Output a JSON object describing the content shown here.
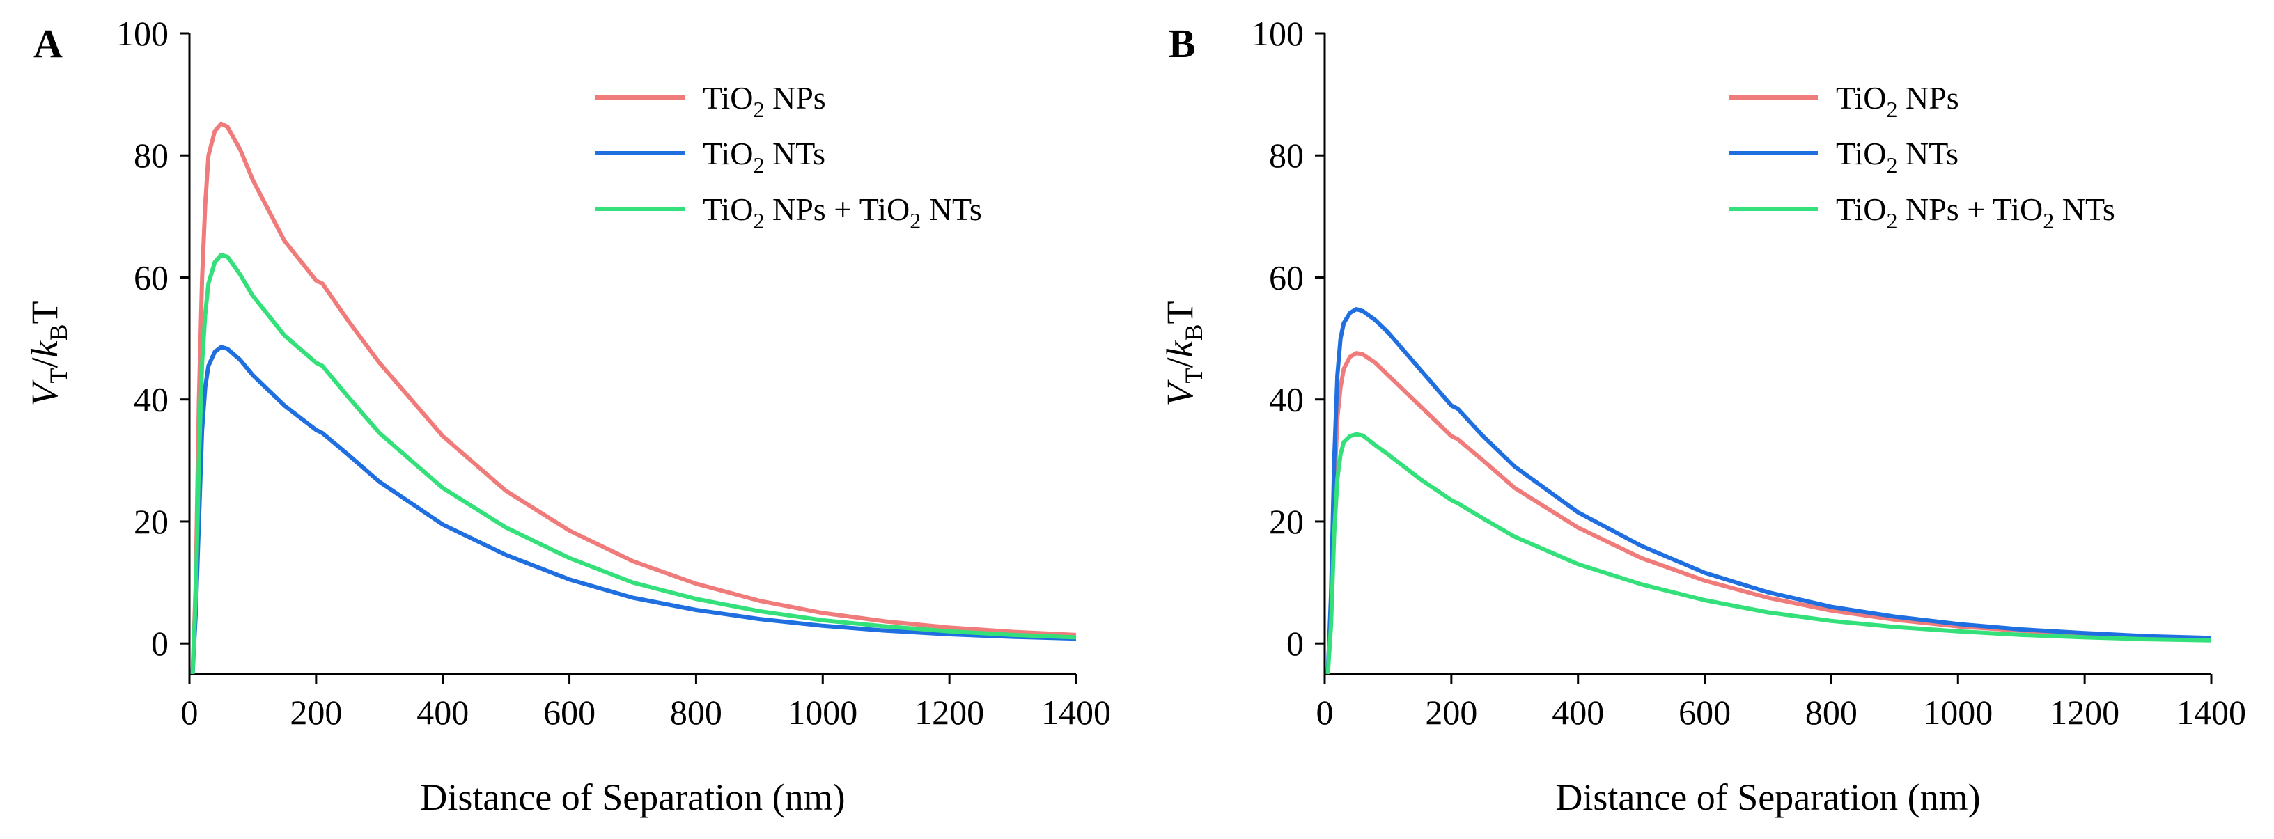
{
  "figure": {
    "title": "",
    "legend_placement": "top-right"
  },
  "chart_data": [
    {
      "panel": "A",
      "type": "line",
      "title": "",
      "xlabel": "Distance of Separation (nm)",
      "ylabel": "V_T/k_B T",
      "ylabel_parts": {
        "main": "V",
        "sub1": "T",
        "slash": "/",
        "k": "k",
        "sub2": "B",
        "tail": "T"
      },
      "xlim": [
        0,
        1400
      ],
      "ylim": [
        -5,
        100
      ],
      "xticks": [
        0,
        200,
        400,
        600,
        800,
        1000,
        1200,
        1400
      ],
      "yticks": [
        0,
        20,
        40,
        60,
        80,
        100
      ],
      "grid": false,
      "legend_placement": "top-right",
      "series": [
        {
          "name": "TiO2 NPs",
          "label": {
            "a": "TiO",
            "sub": "2",
            "b": " NPs",
            "sub2": "",
            "c": ""
          },
          "color": "#F07B7B",
          "x": [
            5,
            10,
            15,
            20,
            25,
            30,
            40,
            50,
            60,
            80,
            100,
            150,
            200,
            210,
            250,
            300,
            400,
            500,
            600,
            700,
            800,
            900,
            1000,
            1100,
            1200,
            1300,
            1400
          ],
          "y": [
            -5,
            10,
            40,
            60,
            72,
            80,
            84,
            85.2,
            84.7,
            81,
            76,
            66,
            59.5,
            59,
            53,
            46,
            34,
            25,
            18.5,
            13.5,
            9.8,
            7,
            5,
            3.6,
            2.6,
            1.9,
            1.4
          ]
        },
        {
          "name": "TiO2 NTs",
          "label": {
            "a": "TiO",
            "sub": "2",
            "b": " NTs",
            "sub2": "",
            "c": ""
          },
          "color": "#1F6FE0",
          "x": [
            5,
            10,
            15,
            20,
            25,
            30,
            40,
            50,
            60,
            80,
            100,
            150,
            200,
            210,
            250,
            300,
            400,
            500,
            600,
            700,
            800,
            900,
            1000,
            1100,
            1200,
            1300,
            1400
          ],
          "y": [
            -5,
            5,
            20,
            35,
            42,
            45.5,
            47.8,
            48.6,
            48.3,
            46.5,
            44,
            39,
            35,
            34.5,
            31,
            26.5,
            19.5,
            14.5,
            10.5,
            7.5,
            5.5,
            4,
            2.9,
            2.1,
            1.5,
            1.1,
            0.8
          ]
        },
        {
          "name": "TiO2 NPs + TiO2 NTs",
          "label": {
            "a": "TiO",
            "sub": "2",
            "b": " NPs + TiO",
            "sub2": "2",
            "c": " NTs"
          },
          "color": "#33E07A",
          "x": [
            5,
            10,
            15,
            20,
            25,
            30,
            40,
            50,
            60,
            80,
            100,
            150,
            200,
            210,
            250,
            300,
            400,
            500,
            600,
            700,
            800,
            900,
            1000,
            1100,
            1200,
            1300,
            1400
          ],
          "y": [
            -5,
            8,
            30,
            46,
            54,
            59,
            62.5,
            63.7,
            63.4,
            60.5,
            57,
            50.5,
            46,
            45.5,
            40.5,
            34.5,
            25.5,
            19,
            14,
            10,
            7.3,
            5.3,
            3.8,
            2.8,
            2,
            1.4,
            1
          ]
        }
      ]
    },
    {
      "panel": "B",
      "type": "line",
      "title": "",
      "xlabel": "Distance of Separation (nm)",
      "ylabel": "V_T/k_B T",
      "ylabel_parts": {
        "main": "V",
        "sub1": "T",
        "slash": "/",
        "k": "k",
        "sub2": "B",
        "tail": "T"
      },
      "xlim": [
        0,
        1400
      ],
      "ylim": [
        -5,
        100
      ],
      "xticks": [
        0,
        200,
        400,
        600,
        800,
        1000,
        1200,
        1400
      ],
      "yticks": [
        0,
        20,
        40,
        60,
        80,
        100
      ],
      "grid": false,
      "legend_placement": "top-right",
      "series": [
        {
          "name": "TiO2 NPs",
          "label": {
            "a": "TiO",
            "sub": "2",
            "b": " NPs",
            "sub2": "",
            "c": ""
          },
          "color": "#F07B7B",
          "x": [
            5,
            10,
            15,
            20,
            25,
            30,
            40,
            50,
            60,
            80,
            100,
            150,
            200,
            210,
            250,
            300,
            400,
            500,
            600,
            700,
            800,
            900,
            1000,
            1100,
            1200,
            1300,
            1400
          ],
          "y": [
            -5,
            5,
            25,
            37,
            42,
            45,
            47,
            47.6,
            47.4,
            46,
            44,
            39,
            34,
            33.5,
            30,
            25.5,
            19,
            14,
            10.3,
            7.5,
            5.4,
            3.9,
            2.8,
            2.1,
            1.5,
            1.1,
            0.8
          ]
        },
        {
          "name": "TiO2 NTs",
          "label": {
            "a": "TiO",
            "sub": "2",
            "b": " NTs",
            "sub2": "",
            "c": ""
          },
          "color": "#1F6FE0",
          "x": [
            5,
            10,
            15,
            20,
            25,
            30,
            40,
            50,
            60,
            80,
            100,
            150,
            200,
            210,
            250,
            300,
            400,
            500,
            600,
            700,
            800,
            900,
            1000,
            1100,
            1200,
            1300,
            1400
          ],
          "y": [
            -5,
            8,
            30,
            44,
            50,
            52.5,
            54.2,
            54.8,
            54.5,
            53,
            51,
            45,
            39,
            38.5,
            34,
            29,
            21.5,
            16,
            11.6,
            8.4,
            6,
            4.4,
            3.2,
            2.3,
            1.7,
            1.2,
            0.9
          ]
        },
        {
          "name": "TiO2 NPs + TiO2 NTs",
          "label": {
            "a": "TiO",
            "sub": "2",
            "b": " NPs + TiO",
            "sub2": "2",
            "c": " NTs"
          },
          "color": "#33E07A",
          "x": [
            5,
            10,
            15,
            20,
            25,
            30,
            40,
            50,
            60,
            80,
            100,
            150,
            200,
            210,
            250,
            300,
            400,
            500,
            600,
            700,
            800,
            900,
            1000,
            1100,
            1200,
            1300,
            1400
          ],
          "y": [
            -5,
            3,
            18,
            27,
            31,
            33,
            34,
            34.3,
            34.1,
            32.5,
            31,
            27,
            23.5,
            23,
            20.5,
            17.5,
            13,
            9.7,
            7.1,
            5.1,
            3.7,
            2.7,
            2,
            1.4,
            1,
            0.7,
            0.5
          ]
        }
      ]
    }
  ]
}
